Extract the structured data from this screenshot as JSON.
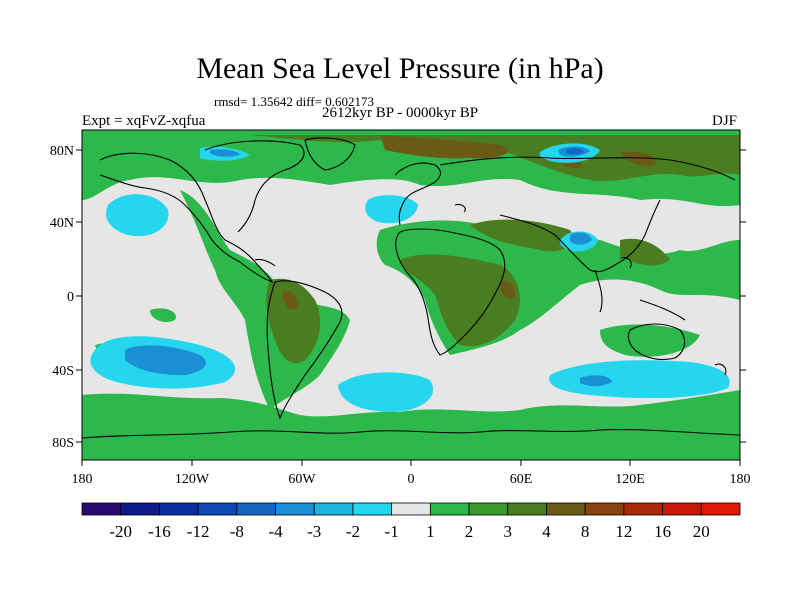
{
  "title": "Mean Sea Level Pressure (in hPa)",
  "stats_line": "rmsd= 1.35642 diff= 0.602173",
  "period": "2612kyr BP - 0000kyr BP",
  "experiment": "Expt = xqFvZ-xqfua",
  "season": "DJF",
  "lat_labels": [
    "80N",
    "40N",
    "0",
    "40S",
    "80S"
  ],
  "lon_labels": [
    "180",
    "120W",
    "60W",
    "0",
    "60E",
    "120E",
    "180"
  ],
  "colorbar": {
    "labels": [
      "-20",
      "-16",
      "-12",
      "-8",
      "-4",
      "-3",
      "-2",
      "-1",
      "1",
      "2",
      "3",
      "4",
      "8",
      "12",
      "16",
      "20"
    ],
    "colors": [
      "#2a0a6e",
      "#0c1a8a",
      "#0b2e9e",
      "#0d48b3",
      "#1565c0",
      "#1a8fd4",
      "#1fb4e0",
      "#26d6ee",
      "#e6e6e6",
      "#2db84b",
      "#3a9a2c",
      "#4a7d1f",
      "#6a5a16",
      "#8a4210",
      "#a82a0a",
      "#c81a0a",
      "#e01808"
    ]
  },
  "legend_colors": {
    "neutral": "#e6e6e6",
    "light_blue": "#26d6ee",
    "mid_blue": "#1fb4e0",
    "blue": "#1a8fd4",
    "dark_blue": "#1565c0",
    "green": "#2db84b",
    "olive": "#4a7d1f",
    "brown": "#6a5a16"
  }
}
